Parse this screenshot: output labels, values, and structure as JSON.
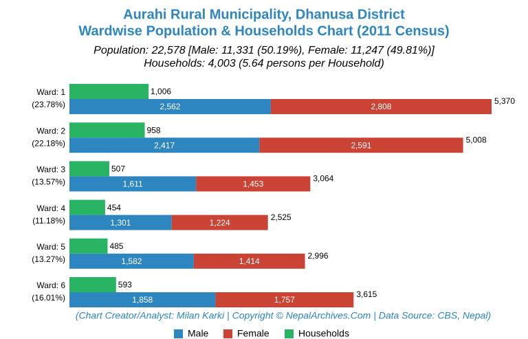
{
  "chart_data": {
    "type": "bar",
    "orientation": "horizontal",
    "title_lines": [
      "Aurahi Rural Municipality, Dhanusa District",
      "Wardwise Population & Households Chart (2011 Census)"
    ],
    "subtitle_lines": [
      "Population: 22,578 [Male: 11,331 (50.19%), Female: 11,247 (49.81%)]",
      "Households: 4,003 (5.64 persons per Household)"
    ],
    "categories": [
      "Ward: 1",
      "Ward: 2",
      "Ward: 3",
      "Ward: 4",
      "Ward: 5",
      "Ward: 6"
    ],
    "category_shares": [
      "(23.78%)",
      "(22.18%)",
      "(13.57%)",
      "(11.18%)",
      "(13.27%)",
      "(16.01%)"
    ],
    "series": [
      {
        "name": "Male",
        "color": "#2e86c1",
        "stack": "population",
        "values": [
          2562,
          2417,
          1611,
          1301,
          1582,
          1858
        ],
        "value_labels": [
          "2,562",
          "2,417",
          "1,611",
          "1,301",
          "1,582",
          "1,858"
        ]
      },
      {
        "name": "Female",
        "color": "#cb4335",
        "stack": "population",
        "values": [
          2808,
          2591,
          1453,
          1224,
          1414,
          1757
        ],
        "value_labels": [
          "2,808",
          "2,591",
          "1,453",
          "1,224",
          "1,414",
          "1,757"
        ]
      },
      {
        "name": "Households",
        "color": "#28b463",
        "stack": "households",
        "values": [
          1006,
          958,
          507,
          454,
          485,
          593
        ],
        "value_labels": [
          "1,006",
          "958",
          "507",
          "454",
          "485",
          "593"
        ]
      }
    ],
    "total_labels": [
      "5,370",
      "5,008",
      "3,064",
      "2,525",
      "2,996",
      "3,615"
    ],
    "note": "(Chart Creator/Analyst: Milan Karki | Copyright © NepalArchives.Com | Data Source: CBS, Nepal)",
    "legend": "bottom"
  }
}
